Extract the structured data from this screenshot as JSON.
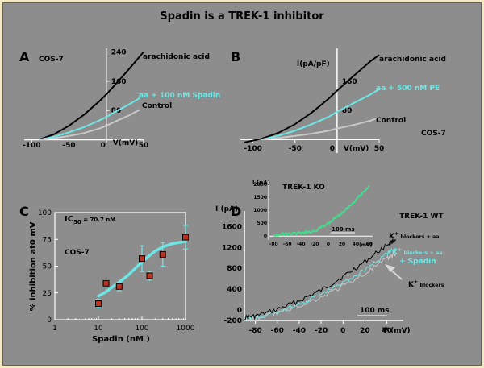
{
  "title": "Spadin is a TREK-1 inhibitor",
  "colors": {
    "background": "#8d8d8d",
    "cyan": "#6ee6e6",
    "control": "#c8c8c8",
    "green": "#3ee08c",
    "marker": "#c0301e",
    "errorbar": "#6ee6e6"
  },
  "chart_data": [
    {
      "panel": "A",
      "type": "line",
      "cell_label": "COS-7",
      "xlabel": "V(mV)",
      "ylabel": "",
      "xlim": [
        -110,
        50
      ],
      "ylim": [
        -10,
        250
      ],
      "xticks": [
        -100,
        -50,
        0,
        50
      ],
      "yticks": [
        80,
        160,
        240
      ],
      "xtick_labels": [
        "-100",
        "-50",
        "0",
        "50"
      ],
      "ytick_labels": [
        "80",
        "160",
        "240"
      ],
      "series": [
        {
          "name": "arachidonic acid",
          "color": "#000000",
          "x": [
            -90,
            -70,
            -50,
            -30,
            -10,
            0,
            10,
            30,
            50
          ],
          "y": [
            0,
            15,
            38,
            68,
            104,
            124,
            146,
            192,
            240
          ]
        },
        {
          "name": "aa + 100 nM Spadin",
          "color": "#6ee6e6",
          "x": [
            -90,
            -70,
            -50,
            -30,
            -10,
            0,
            10,
            30,
            45
          ],
          "y": [
            0,
            8,
            20,
            34,
            52,
            62,
            74,
            96,
            114
          ]
        },
        {
          "name": "Control",
          "color": "#c8c8c8",
          "x": [
            -90,
            -70,
            -50,
            -30,
            -10,
            0,
            10,
            30,
            45
          ],
          "y": [
            0,
            4,
            10,
            18,
            30,
            38,
            48,
            66,
            82
          ]
        }
      ]
    },
    {
      "panel": "B",
      "type": "line",
      "cell_label": "COS-7",
      "xlabel": "V(mV)",
      "ylabel": "I(pA/pF)",
      "xlim": [
        -115,
        50
      ],
      "ylim": [
        -15,
        250
      ],
      "xticks": [
        -100,
        -50,
        0,
        50
      ],
      "yticks": [
        80,
        160
      ],
      "xtick_labels": [
        "-100",
        "-50",
        "0",
        "50"
      ],
      "ytick_labels": [
        "80",
        "160"
      ],
      "series": [
        {
          "name": "arachidonic acid",
          "color": "#000000",
          "x": [
            -110,
            -90,
            -70,
            -50,
            -30,
            -10,
            0,
            20,
            40,
            50
          ],
          "y": [
            -8,
            2,
            18,
            42,
            74,
            112,
            134,
            175,
            215,
            232
          ]
        },
        {
          "name": "aa + 500 nM PE",
          "color": "#6ee6e6",
          "x": [
            -90,
            -70,
            -50,
            -30,
            -10,
            0,
            20,
            40,
            50
          ],
          "y": [
            0,
            10,
            24,
            42,
            62,
            76,
            100,
            124,
            138
          ]
        },
        {
          "name": "Control",
          "color": "#c8c8c8",
          "x": [
            -90,
            -70,
            -50,
            -30,
            -10,
            0,
            20,
            40,
            50
          ],
          "y": [
            0,
            4,
            10,
            16,
            24,
            30,
            40,
            52,
            60
          ]
        }
      ]
    },
    {
      "panel": "C",
      "type": "scatter",
      "cell_label": "COS-7",
      "annotation": "IC50 = 70.7 nM",
      "annotation_main": "IC",
      "annotation_sub": "50",
      "annotation_rest": " = 70.7 nM",
      "xlabel": "Spadin (nM )",
      "ylabel": "% inhibition at0 mV",
      "xscale": "log",
      "xlim": [
        1,
        1000
      ],
      "ylim": [
        0,
        100
      ],
      "xticks": [
        1,
        10,
        100,
        1000
      ],
      "yticks": [
        0,
        25,
        50,
        75,
        100
      ],
      "xtick_labels": [
        "1",
        "10",
        "100",
        "1000"
      ],
      "ytick_labels": [
        "0",
        "25",
        "50",
        "75",
        "100"
      ],
      "points": [
        {
          "x": 10,
          "y": 15,
          "err": 4
        },
        {
          "x": 15,
          "y": 34,
          "err": 3
        },
        {
          "x": 30,
          "y": 31,
          "err": 4
        },
        {
          "x": 100,
          "y": 57,
          "err": 12
        },
        {
          "x": 150,
          "y": 41,
          "err": 4
        },
        {
          "x": 300,
          "y": 61,
          "err": 11
        },
        {
          "x": 1000,
          "y": 77,
          "err": 11
        }
      ],
      "fit": {
        "x": [
          10,
          15,
          20,
          30,
          50,
          70,
          100,
          150,
          200,
          300,
          500,
          700,
          1000
        ],
        "y": [
          22,
          26,
          30,
          35,
          42,
          48,
          54,
          60,
          64,
          68,
          71,
          72,
          73
        ]
      }
    },
    {
      "panel": "D",
      "type": "line",
      "cell_label": "TREK-1 WT",
      "xlabel": "V (mV)",
      "ylabel": "I (pA)",
      "xlim": [
        -90,
        55
      ],
      "ylim": [
        -200,
        1900
      ],
      "xticks": [
        -80,
        -60,
        -40,
        -20,
        0,
        20,
        40
      ],
      "yticks": [
        -200,
        0,
        400,
        800,
        1200,
        1600
      ],
      "xtick_labels": [
        "-80",
        "-60",
        "-40",
        "-20",
        "0",
        "20",
        "40"
      ],
      "ytick_labels": [
        "-200",
        "0",
        "400",
        "800",
        "1200",
        "1600"
      ],
      "scale_bar": "100 ms",
      "series": [
        {
          "name": "K+ blockers + aa",
          "label_main": "K",
          "label_sup": "+",
          "label_rest": " blockers + aa",
          "color": "#000000",
          "x": [
            -90,
            -80,
            -60,
            -40,
            -20,
            0,
            20,
            40,
            48
          ],
          "y": [
            -150,
            -120,
            10,
            180,
            380,
            640,
            930,
            1250,
            1360
          ]
        },
        {
          "name": "K+ blockers + aa + Spadin",
          "label_line1_main": "K",
          "label_line1_sup": "+",
          "label_line1_rest": " blockers + aa",
          "label_line2": "+ Spadin",
          "color": "#6ee6e6",
          "x": [
            -90,
            -80,
            -60,
            -40,
            -20,
            0,
            20,
            40,
            48
          ],
          "y": [
            -170,
            -150,
            -40,
            110,
            300,
            520,
            780,
            1080,
            1190
          ]
        },
        {
          "name": "K+ blockers",
          "label_main": "K",
          "label_sup": "+",
          "label_rest": " blockers",
          "color": "#c8c8c8",
          "x": [
            -90,
            -80,
            -60,
            -40,
            -20,
            0,
            20,
            40,
            48
          ],
          "y": [
            -180,
            -160,
            -60,
            80,
            250,
            460,
            700,
            980,
            1080
          ]
        }
      ],
      "inset": {
        "title": "TREK-1 KO",
        "ylabel": "I (pA)",
        "xlabel": "(mV)",
        "scale_bar": "100 ms",
        "xlim": [
          -85,
          65
        ],
        "ylim": [
          -150,
          2100
        ],
        "xticks": [
          -80,
          -60,
          -40,
          -20,
          0,
          20,
          40,
          60
        ],
        "yticks": [
          0,
          500,
          1000,
          1500,
          2000
        ],
        "xtick_labels": [
          "-80",
          "-60",
          "-40",
          "-20",
          "0",
          "20",
          "40",
          "60"
        ],
        "ytick_labels": [
          "0",
          "500",
          "1000",
          "1500",
          "2000"
        ],
        "series": [
          {
            "name": "TREK-1 KO",
            "color": "#3ee08c",
            "x": [
              -80,
              -60,
              -40,
              -20,
              0,
              20,
              40,
              60
            ],
            "y": [
              50,
              90,
              120,
              180,
              500,
              900,
              1400,
              1950
            ]
          }
        ]
      }
    }
  ],
  "panel_letters": [
    "A",
    "B",
    "C",
    "D"
  ]
}
